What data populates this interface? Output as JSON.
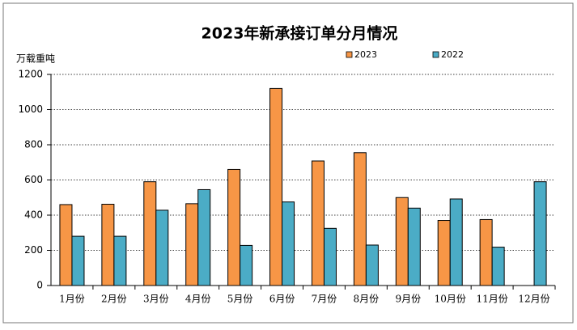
{
  "chart_data": {
    "type": "bar",
    "title": "2023年新承接订单分月情况",
    "y_label": "万载重吨",
    "categories": [
      "1月份",
      "2月份",
      "3月份",
      "4月份",
      "5月份",
      "6月份",
      "7月份",
      "8月份",
      "9月份",
      "10月份",
      "11月份",
      "12月份"
    ],
    "series": [
      {
        "name": "2023",
        "color": "#F79646",
        "values": [
          460,
          462,
          590,
          465,
          660,
          1120,
          708,
          755,
          500,
          370,
          375,
          null
        ]
      },
      {
        "name": "2022",
        "color": "#4BACC6",
        "values": [
          280,
          280,
          428,
          545,
          228,
          475,
          325,
          230,
          440,
          492,
          218,
          590
        ]
      }
    ],
    "ylim": [
      0,
      1200
    ],
    "yticks": [
      0,
      200,
      400,
      600,
      800,
      1000,
      1200
    ],
    "grid": true
  }
}
